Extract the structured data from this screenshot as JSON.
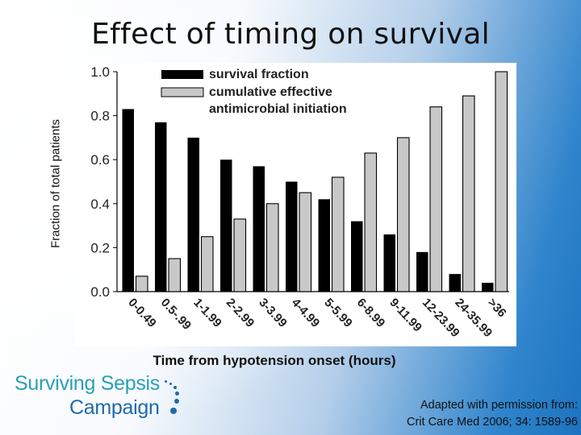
{
  "slide": {
    "title": "Effect of timing on survival",
    "y_axis_title": "Fraction of total patients",
    "x_axis_title": "Time from hypotension onset (hours)"
  },
  "logo": {
    "line1": "Surviving Sepsis",
    "line2": "Campaign"
  },
  "citation": {
    "line1": "Adapted with permission from:",
    "line2": "Crit Care Med 2006; 34: 1589-96"
  },
  "chart_data": {
    "type": "bar",
    "title": "",
    "xlabel": "Time from hypotension onset (hours)",
    "ylabel": "Fraction of total patients",
    "ylim": [
      0.0,
      1.0
    ],
    "yticks": [
      "0.0",
      "0.2",
      "0.4",
      "0.6",
      "0.8",
      "1.0"
    ],
    "grid": false,
    "legend_position": "top-left",
    "categories": [
      "0-0.49",
      "0.5-.99",
      "1-1.99",
      "2-2.99",
      "3-3.99",
      "4-4.99",
      "5-5.99",
      "6-8.99",
      "9-11.99",
      "12-23.99",
      "24-35.99",
      ">36"
    ],
    "series": [
      {
        "name": "survival fraction",
        "color": "#000000",
        "values": [
          0.83,
          0.77,
          0.7,
          0.6,
          0.57,
          0.5,
          0.42,
          0.32,
          0.26,
          0.18,
          0.08,
          0.04
        ]
      },
      {
        "name": "cumulative effective antimicrobial initiation",
        "legend_lines": [
          "cumulative effective",
          "antimicrobial initiation"
        ],
        "color": "#c8c8c8",
        "values": [
          0.07,
          0.15,
          0.25,
          0.33,
          0.4,
          0.45,
          0.52,
          0.63,
          0.7,
          0.84,
          0.89,
          1.0
        ]
      }
    ]
  }
}
